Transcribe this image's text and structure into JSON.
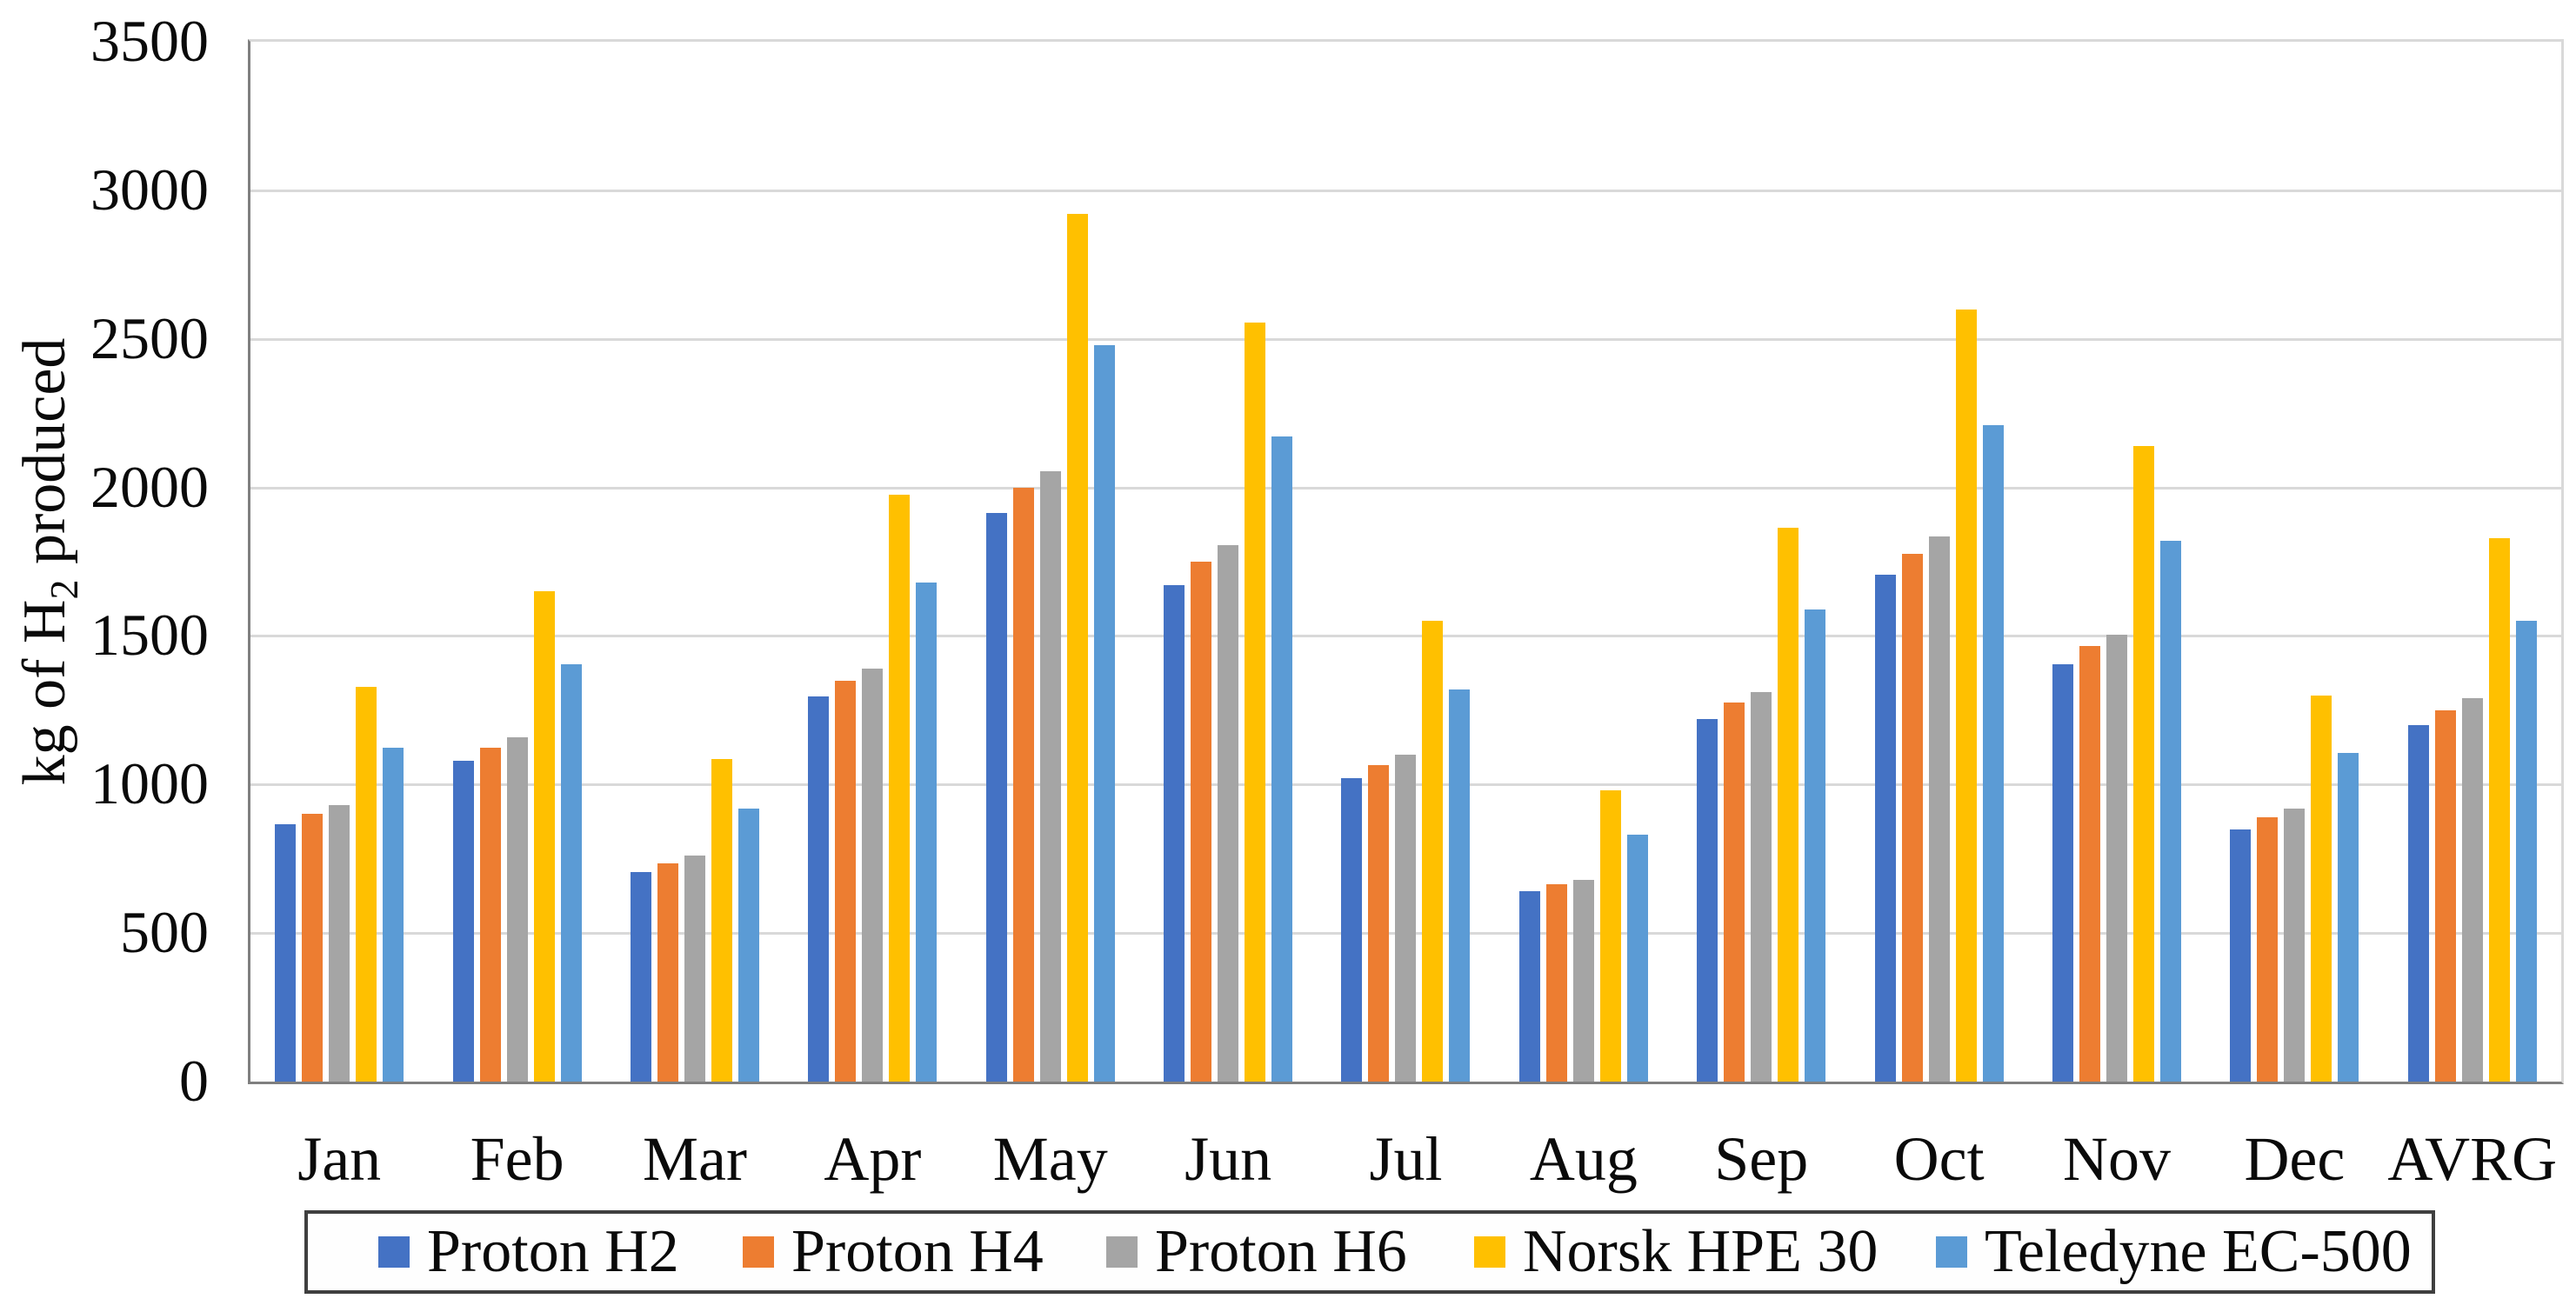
{
  "chart_data": {
    "type": "bar",
    "title": "",
    "xlabel": "",
    "ylabel_parts": {
      "pre": "kg of H",
      "sub": "2",
      "post": " produced"
    },
    "ylim": [
      0,
      3500
    ],
    "yticks": [
      0,
      500,
      1000,
      1500,
      2000,
      2500,
      3000,
      3500
    ],
    "grid": true,
    "legend_position": "bottom",
    "categories": [
      "Jan",
      "Feb",
      "Mar",
      "Apr",
      "May",
      "Jun",
      "Jul",
      "Aug",
      "Sep",
      "Oct",
      "Nov",
      "Dec",
      "AVRG"
    ],
    "series": [
      {
        "name": "Proton H2",
        "color": "#4472C4",
        "values": [
          865,
          1080,
          705,
          1295,
          1915,
          1670,
          1020,
          640,
          1220,
          1705,
          1405,
          850,
          1200
        ]
      },
      {
        "name": "Proton H4",
        "color": "#ED7D31",
        "values": [
          900,
          1125,
          735,
          1350,
          2000,
          1750,
          1065,
          665,
          1275,
          1775,
          1465,
          890,
          1250
        ]
      },
      {
        "name": "Proton H6",
        "color": "#A5A5A5",
        "values": [
          930,
          1160,
          760,
          1390,
          2055,
          1805,
          1100,
          680,
          1310,
          1835,
          1505,
          920,
          1290
        ]
      },
      {
        "name": "Norsk HPE 30",
        "color": "#FFC000",
        "values": [
          1330,
          1650,
          1085,
          1975,
          2920,
          2555,
          1550,
          980,
          1865,
          2600,
          2140,
          1300,
          1830
        ]
      },
      {
        "name": "Teledyne EC-500",
        "color": "#5B9BD5",
        "values": [
          1125,
          1405,
          920,
          1680,
          2480,
          2170,
          1320,
          830,
          1590,
          2210,
          1820,
          1105,
          1550
        ]
      }
    ]
  },
  "colors": {
    "gridline": "#d9d9d9",
    "axis": "#7f7f7f",
    "legend_border": "#3f3f3f",
    "text": "#0a0a0a"
  }
}
